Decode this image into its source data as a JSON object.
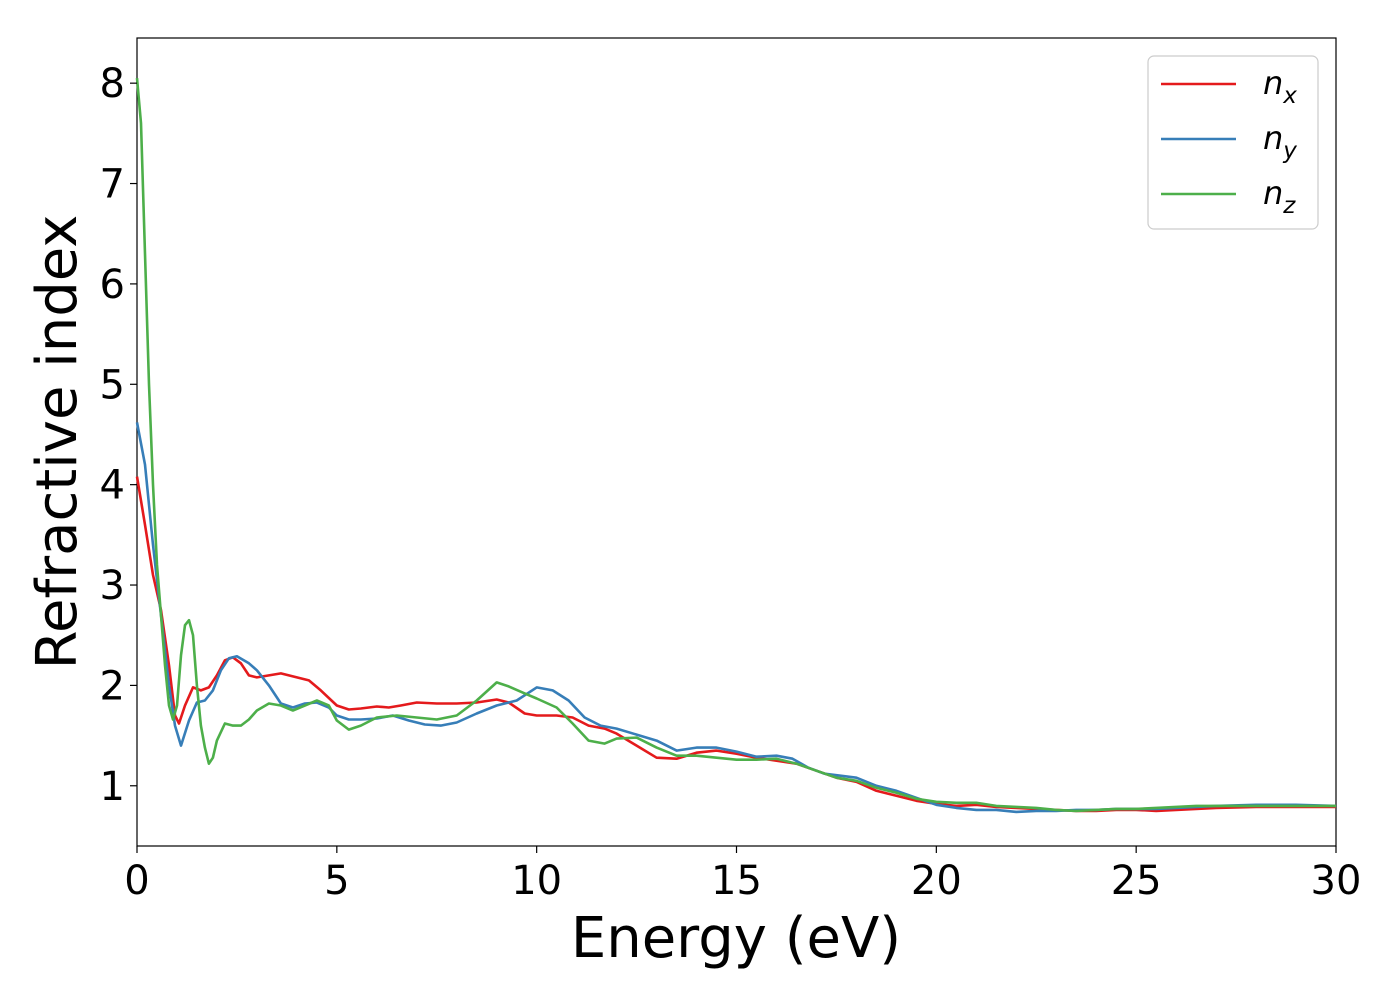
{
  "chart_data": {
    "type": "line",
    "title": "",
    "xlabel": "Energy (eV)",
    "ylabel": "Refractive index",
    "xlim": [
      0,
      30
    ],
    "ylim": [
      0.4,
      8.45
    ],
    "xticks": [
      0,
      5,
      10,
      15,
      20,
      25,
      30
    ],
    "yticks": [
      1,
      2,
      3,
      4,
      5,
      6,
      7,
      8
    ],
    "grid": false,
    "legend_position": "top-right",
    "series": [
      {
        "name": "n",
        "subscript": "x",
        "color": "#e41a1c",
        "points": [
          [
            0,
            4.08
          ],
          [
            0.2,
            3.6
          ],
          [
            0.4,
            3.1
          ],
          [
            0.6,
            2.75
          ],
          [
            0.8,
            2.2
          ],
          [
            0.95,
            1.7
          ],
          [
            1.05,
            1.62
          ],
          [
            1.2,
            1.8
          ],
          [
            1.4,
            1.98
          ],
          [
            1.6,
            1.95
          ],
          [
            1.8,
            1.98
          ],
          [
            2.0,
            2.1
          ],
          [
            2.2,
            2.25
          ],
          [
            2.4,
            2.28
          ],
          [
            2.6,
            2.22
          ],
          [
            2.8,
            2.1
          ],
          [
            3.0,
            2.08
          ],
          [
            3.3,
            2.1
          ],
          [
            3.6,
            2.12
          ],
          [
            4.0,
            2.08
          ],
          [
            4.3,
            2.05
          ],
          [
            4.6,
            1.95
          ],
          [
            5.0,
            1.8
          ],
          [
            5.3,
            1.76
          ],
          [
            5.6,
            1.77
          ],
          [
            6.0,
            1.79
          ],
          [
            6.3,
            1.78
          ],
          [
            6.6,
            1.8
          ],
          [
            7.0,
            1.83
          ],
          [
            7.5,
            1.82
          ],
          [
            8.0,
            1.82
          ],
          [
            8.5,
            1.83
          ],
          [
            9.0,
            1.86
          ],
          [
            9.3,
            1.83
          ],
          [
            9.7,
            1.72
          ],
          [
            10.0,
            1.7
          ],
          [
            10.5,
            1.7
          ],
          [
            10.9,
            1.68
          ],
          [
            11.3,
            1.6
          ],
          [
            11.7,
            1.57
          ],
          [
            12.0,
            1.52
          ],
          [
            12.5,
            1.4
          ],
          [
            13.0,
            1.28
          ],
          [
            13.5,
            1.27
          ],
          [
            14.0,
            1.33
          ],
          [
            14.5,
            1.35
          ],
          [
            15.0,
            1.32
          ],
          [
            15.5,
            1.28
          ],
          [
            16.0,
            1.25
          ],
          [
            16.5,
            1.22
          ],
          [
            17.0,
            1.15
          ],
          [
            17.5,
            1.08
          ],
          [
            18.0,
            1.04
          ],
          [
            18.5,
            0.95
          ],
          [
            19.0,
            0.9
          ],
          [
            19.5,
            0.85
          ],
          [
            20.0,
            0.82
          ],
          [
            20.5,
            0.8
          ],
          [
            21.0,
            0.81
          ],
          [
            21.5,
            0.79
          ],
          [
            22.0,
            0.78
          ],
          [
            22.5,
            0.77
          ],
          [
            23.0,
            0.76
          ],
          [
            23.5,
            0.75
          ],
          [
            24.0,
            0.75
          ],
          [
            24.5,
            0.76
          ],
          [
            25.0,
            0.76
          ],
          [
            25.5,
            0.75
          ],
          [
            26.0,
            0.76
          ],
          [
            26.5,
            0.77
          ],
          [
            27.0,
            0.78
          ],
          [
            28.0,
            0.79
          ],
          [
            29.0,
            0.79
          ],
          [
            30.0,
            0.79
          ]
        ]
      },
      {
        "name": "n",
        "subscript": "y",
        "color": "#377eb8",
        "points": [
          [
            0,
            4.62
          ],
          [
            0.2,
            4.2
          ],
          [
            0.4,
            3.4
          ],
          [
            0.6,
            2.7
          ],
          [
            0.8,
            2.0
          ],
          [
            0.95,
            1.6
          ],
          [
            1.1,
            1.4
          ],
          [
            1.3,
            1.65
          ],
          [
            1.5,
            1.83
          ],
          [
            1.7,
            1.85
          ],
          [
            1.9,
            1.95
          ],
          [
            2.1,
            2.15
          ],
          [
            2.3,
            2.27
          ],
          [
            2.5,
            2.29
          ],
          [
            2.8,
            2.22
          ],
          [
            3.0,
            2.15
          ],
          [
            3.3,
            2.0
          ],
          [
            3.6,
            1.82
          ],
          [
            3.9,
            1.78
          ],
          [
            4.2,
            1.82
          ],
          [
            4.5,
            1.83
          ],
          [
            4.8,
            1.78
          ],
          [
            5.0,
            1.7
          ],
          [
            5.3,
            1.66
          ],
          [
            5.6,
            1.66
          ],
          [
            6.0,
            1.67
          ],
          [
            6.4,
            1.7
          ],
          [
            6.8,
            1.65
          ],
          [
            7.2,
            1.61
          ],
          [
            7.6,
            1.6
          ],
          [
            8.0,
            1.63
          ],
          [
            8.5,
            1.72
          ],
          [
            9.0,
            1.8
          ],
          [
            9.5,
            1.85
          ],
          [
            10.0,
            1.98
          ],
          [
            10.4,
            1.95
          ],
          [
            10.8,
            1.85
          ],
          [
            11.2,
            1.68
          ],
          [
            11.6,
            1.6
          ],
          [
            12.0,
            1.57
          ],
          [
            12.5,
            1.51
          ],
          [
            13.0,
            1.45
          ],
          [
            13.5,
            1.35
          ],
          [
            14.0,
            1.38
          ],
          [
            14.5,
            1.38
          ],
          [
            15.0,
            1.34
          ],
          [
            15.5,
            1.29
          ],
          [
            16.0,
            1.3
          ],
          [
            16.4,
            1.27
          ],
          [
            16.8,
            1.18
          ],
          [
            17.2,
            1.12
          ],
          [
            17.6,
            1.1
          ],
          [
            18.0,
            1.08
          ],
          [
            18.5,
            1.0
          ],
          [
            19.0,
            0.95
          ],
          [
            19.5,
            0.88
          ],
          [
            20.0,
            0.81
          ],
          [
            20.5,
            0.78
          ],
          [
            21.0,
            0.76
          ],
          [
            21.5,
            0.76
          ],
          [
            22.0,
            0.74
          ],
          [
            22.5,
            0.75
          ],
          [
            23.0,
            0.75
          ],
          [
            23.5,
            0.76
          ],
          [
            24.0,
            0.76
          ],
          [
            24.5,
            0.77
          ],
          [
            25.0,
            0.77
          ],
          [
            25.5,
            0.77
          ],
          [
            26.0,
            0.78
          ],
          [
            26.5,
            0.79
          ],
          [
            27.0,
            0.8
          ],
          [
            28.0,
            0.81
          ],
          [
            29.0,
            0.81
          ],
          [
            30.0,
            0.8
          ]
        ]
      },
      {
        "name": "n",
        "subscript": "z",
        "color": "#4daf4a",
        "points": [
          [
            0,
            8.05
          ],
          [
            0.1,
            7.6
          ],
          [
            0.2,
            6.3
          ],
          [
            0.3,
            5.0
          ],
          [
            0.4,
            4.0
          ],
          [
            0.5,
            3.2
          ],
          [
            0.6,
            2.7
          ],
          [
            0.7,
            2.2
          ],
          [
            0.8,
            1.8
          ],
          [
            0.9,
            1.66
          ],
          [
            1.0,
            1.8
          ],
          [
            1.1,
            2.3
          ],
          [
            1.2,
            2.6
          ],
          [
            1.3,
            2.65
          ],
          [
            1.4,
            2.5
          ],
          [
            1.5,
            2.0
          ],
          [
            1.6,
            1.6
          ],
          [
            1.7,
            1.38
          ],
          [
            1.8,
            1.22
          ],
          [
            1.9,
            1.28
          ],
          [
            2.0,
            1.45
          ],
          [
            2.2,
            1.62
          ],
          [
            2.4,
            1.6
          ],
          [
            2.6,
            1.6
          ],
          [
            2.8,
            1.66
          ],
          [
            3.0,
            1.75
          ],
          [
            3.3,
            1.82
          ],
          [
            3.6,
            1.8
          ],
          [
            3.9,
            1.75
          ],
          [
            4.2,
            1.8
          ],
          [
            4.5,
            1.85
          ],
          [
            4.8,
            1.8
          ],
          [
            5.0,
            1.65
          ],
          [
            5.3,
            1.56
          ],
          [
            5.6,
            1.6
          ],
          [
            6.0,
            1.68
          ],
          [
            6.5,
            1.7
          ],
          [
            7.0,
            1.68
          ],
          [
            7.5,
            1.66
          ],
          [
            8.0,
            1.7
          ],
          [
            8.5,
            1.85
          ],
          [
            9.0,
            2.03
          ],
          [
            9.3,
            1.99
          ],
          [
            9.7,
            1.92
          ],
          [
            10.0,
            1.87
          ],
          [
            10.5,
            1.78
          ],
          [
            10.9,
            1.62
          ],
          [
            11.3,
            1.45
          ],
          [
            11.7,
            1.42
          ],
          [
            12.0,
            1.47
          ],
          [
            12.5,
            1.48
          ],
          [
            13.0,
            1.38
          ],
          [
            13.5,
            1.3
          ],
          [
            14.0,
            1.3
          ],
          [
            14.5,
            1.28
          ],
          [
            15.0,
            1.26
          ],
          [
            15.5,
            1.26
          ],
          [
            16.0,
            1.27
          ],
          [
            16.5,
            1.22
          ],
          [
            17.0,
            1.15
          ],
          [
            17.5,
            1.08
          ],
          [
            18.0,
            1.05
          ],
          [
            18.5,
            0.98
          ],
          [
            19.0,
            0.93
          ],
          [
            19.5,
            0.87
          ],
          [
            20.0,
            0.84
          ],
          [
            20.5,
            0.83
          ],
          [
            21.0,
            0.83
          ],
          [
            21.5,
            0.8
          ],
          [
            22.0,
            0.79
          ],
          [
            22.5,
            0.78
          ],
          [
            23.0,
            0.76
          ],
          [
            23.5,
            0.75
          ],
          [
            24.0,
            0.76
          ],
          [
            24.5,
            0.77
          ],
          [
            25.0,
            0.77
          ],
          [
            25.5,
            0.78
          ],
          [
            26.0,
            0.79
          ],
          [
            26.5,
            0.8
          ],
          [
            27.0,
            0.8
          ],
          [
            28.0,
            0.8
          ],
          [
            29.0,
            0.8
          ],
          [
            30.0,
            0.8
          ]
        ]
      }
    ]
  }
}
